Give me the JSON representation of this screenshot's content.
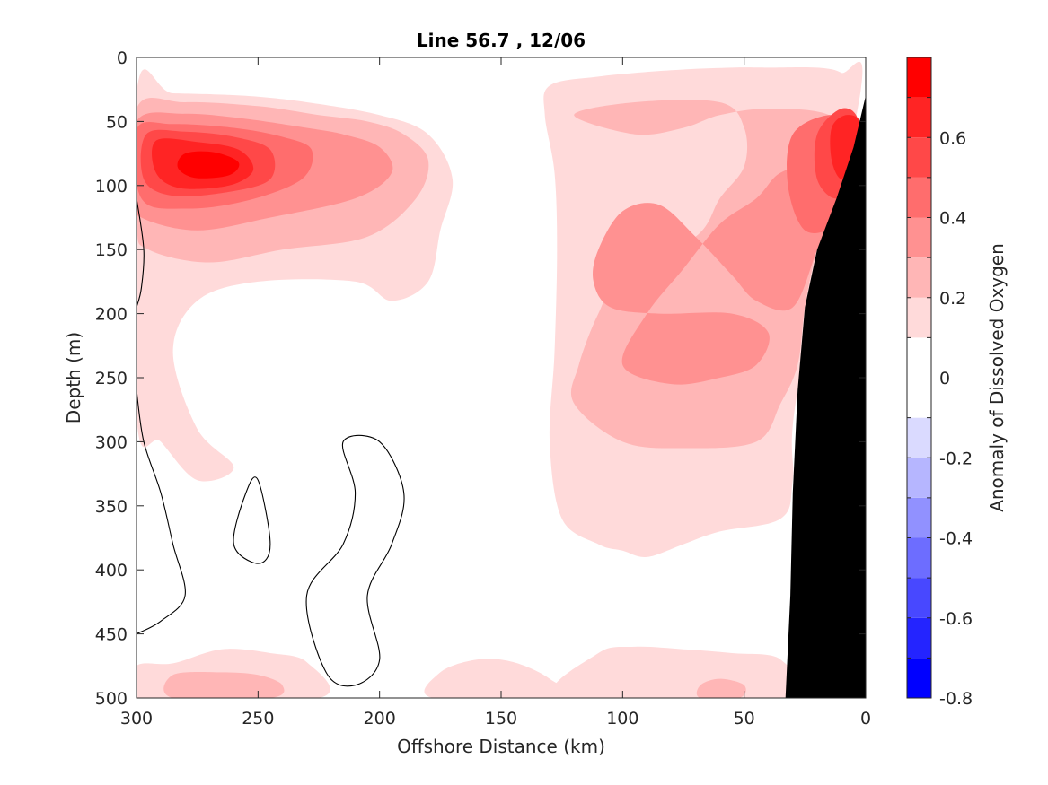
{
  "chart_data": {
    "type": "heatmap",
    "subtype": "filled-contour-section",
    "title": "Line 56.7 , 12/06",
    "xlabel": "Offshore Distance (km)",
    "ylabel": "Depth (m)",
    "colorbar_label": "Anomaly of Dissolved Oxygen",
    "xlim": [
      300,
      0
    ],
    "ylim": [
      0,
      500
    ],
    "x_reversed": true,
    "y_reversed": true,
    "grid": false,
    "x_ticks": [
      300,
      250,
      200,
      150,
      100,
      50,
      0
    ],
    "x_tick_labels": [
      "300",
      "250",
      "200",
      "150",
      "100",
      "50",
      "0"
    ],
    "y_ticks": [
      0,
      50,
      100,
      150,
      200,
      250,
      300,
      350,
      400,
      450,
      500
    ],
    "y_tick_labels": [
      "0",
      "50",
      "100",
      "150",
      "200",
      "250",
      "300",
      "350",
      "400",
      "450",
      "500"
    ],
    "colorbar": {
      "range": [
        -0.8,
        0.8
      ],
      "levels": [
        -0.8,
        -0.7,
        -0.6,
        -0.5,
        -0.4,
        -0.3,
        -0.2,
        -0.1,
        0.1,
        0.2,
        0.3,
        0.4,
        0.5,
        0.6,
        0.7,
        0.8
      ],
      "bands": [
        {
          "from": -0.8,
          "to": -0.7,
          "color": "#0000ff"
        },
        {
          "from": -0.7,
          "to": -0.6,
          "color": "#2424ff"
        },
        {
          "from": -0.6,
          "to": -0.5,
          "color": "#4848ff"
        },
        {
          "from": -0.5,
          "to": -0.4,
          "color": "#6d6dff"
        },
        {
          "from": -0.4,
          "to": -0.3,
          "color": "#9191ff"
        },
        {
          "from": -0.3,
          "to": -0.2,
          "color": "#b6b6ff"
        },
        {
          "from": -0.2,
          "to": -0.1,
          "color": "#dadaff"
        },
        {
          "from": -0.1,
          "to": 0.1,
          "color": "#ffffff"
        },
        {
          "from": 0.1,
          "to": 0.2,
          "color": "#ffdada"
        },
        {
          "from": 0.2,
          "to": 0.3,
          "color": "#ffb6b6"
        },
        {
          "from": 0.3,
          "to": 0.4,
          "color": "#ff9191"
        },
        {
          "from": 0.4,
          "to": 0.5,
          "color": "#ff6d6d"
        },
        {
          "from": 0.5,
          "to": 0.6,
          "color": "#ff4848"
        },
        {
          "from": 0.6,
          "to": 0.7,
          "color": "#ff2424"
        },
        {
          "from": 0.7,
          "to": 0.8,
          "color": "#ff0000"
        }
      ],
      "ticks": [
        0.6,
        0.4,
        0.2,
        0,
        -0.2,
        -0.4,
        -0.6,
        -0.8
      ],
      "tick_labels": [
        "0.6",
        "0.4",
        "0.2",
        "0",
        "-0.2",
        "-0.4",
        "-0.6",
        "-0.8"
      ]
    },
    "shelf_color": "#000000",
    "shelf_boundary": [
      [
        0,
        30
      ],
      [
        5,
        70
      ],
      [
        12,
        110
      ],
      [
        20,
        150
      ],
      [
        25,
        195
      ],
      [
        28,
        260
      ],
      [
        30,
        340
      ],
      [
        31,
        420
      ],
      [
        33,
        500
      ]
    ],
    "regions": [
      {
        "name": "surface-low-west",
        "level": -0.1,
        "polygon": [
          [
            300,
            0
          ],
          [
            280,
            0
          ],
          [
            270,
            15
          ],
          [
            265,
            25
          ],
          [
            285,
            30
          ],
          [
            300,
            28
          ]
        ]
      },
      {
        "name": "surface-low-mid",
        "level": -0.1,
        "polygon": [
          [
            240,
            0
          ],
          [
            180,
            0
          ],
          [
            175,
            10
          ],
          [
            200,
            20
          ],
          [
            235,
            25
          ]
        ]
      },
      {
        "name": "west-edge-low",
        "level": -0.1,
        "polygon": [
          [
            300,
            110
          ],
          [
            297,
            140
          ],
          [
            298,
            175
          ],
          [
            300,
            180
          ]
        ]
      },
      {
        "name": "core-west-0.1",
        "level": 0.1,
        "polygon": [
          [
            300,
            28
          ],
          [
            285,
            28
          ],
          [
            255,
            30
          ],
          [
            230,
            35
          ],
          [
            200,
            45
          ],
          [
            180,
            60
          ],
          [
            170,
            95
          ],
          [
            175,
            135
          ],
          [
            180,
            175
          ],
          [
            195,
            190
          ],
          [
            210,
            175
          ],
          [
            250,
            175
          ],
          [
            275,
            190
          ],
          [
            285,
            230
          ],
          [
            275,
            290
          ],
          [
            260,
            320
          ],
          [
            275,
            330
          ],
          [
            290,
            300
          ],
          [
            300,
            280
          ]
        ]
      },
      {
        "name": "core-west-0.2",
        "level": 0.2,
        "polygon": [
          [
            300,
            40
          ],
          [
            280,
            35
          ],
          [
            250,
            38
          ],
          [
            225,
            45
          ],
          [
            205,
            50
          ],
          [
            190,
            60
          ],
          [
            180,
            80
          ],
          [
            185,
            110
          ],
          [
            205,
            140
          ],
          [
            240,
            150
          ],
          [
            270,
            160
          ],
          [
            295,
            150
          ],
          [
            300,
            130
          ]
        ]
      },
      {
        "name": "core-west-0.3",
        "level": 0.3,
        "polygon": [
          [
            300,
            50
          ],
          [
            280,
            44
          ],
          [
            255,
            48
          ],
          [
            230,
            55
          ],
          [
            215,
            60
          ],
          [
            200,
            70
          ],
          [
            195,
            90
          ],
          [
            210,
            110
          ],
          [
            245,
            125
          ],
          [
            275,
            135
          ],
          [
            298,
            125
          ],
          [
            300,
            110
          ]
        ]
      },
      {
        "name": "core-west-0.4",
        "level": 0.4,
        "polygon": [
          [
            300,
            56
          ],
          [
            285,
            52
          ],
          [
            260,
            55
          ],
          [
            240,
            62
          ],
          [
            228,
            72
          ],
          [
            232,
            95
          ],
          [
            255,
            112
          ],
          [
            280,
            118
          ],
          [
            298,
            110
          ]
        ]
      },
      {
        "name": "core-west-0.5",
        "level": 0.5,
        "polygon": [
          [
            296,
            60
          ],
          [
            280,
            58
          ],
          [
            260,
            62
          ],
          [
            245,
            72
          ],
          [
            245,
            95
          ],
          [
            262,
            105
          ],
          [
            285,
            108
          ],
          [
            297,
            95
          ]
        ]
      },
      {
        "name": "core-west-0.6",
        "level": 0.6,
        "polygon": [
          [
            292,
            65
          ],
          [
            275,
            66
          ],
          [
            258,
            72
          ],
          [
            252,
            88
          ],
          [
            262,
            100
          ],
          [
            282,
            102
          ],
          [
            292,
            90
          ]
        ]
      },
      {
        "name": "core-west-0.7",
        "level": 0.7,
        "polygon": [
          [
            280,
            75
          ],
          [
            268,
            74
          ],
          [
            258,
            82
          ],
          [
            262,
            92
          ],
          [
            276,
            94
          ],
          [
            283,
            86
          ]
        ]
      },
      {
        "name": "east-0.1",
        "level": 0.1,
        "polygon": [
          [
            130,
            22
          ],
          [
            110,
            15
          ],
          [
            80,
            10
          ],
          [
            55,
            8
          ],
          [
            40,
            8
          ],
          [
            20,
            8
          ],
          [
            10,
            12
          ],
          [
            2,
            25
          ],
          [
            28,
            260
          ],
          [
            30,
            330
          ],
          [
            35,
            360
          ],
          [
            60,
            370
          ],
          [
            75,
            380
          ],
          [
            90,
            390
          ],
          [
            100,
            385
          ],
          [
            110,
            380
          ],
          [
            125,
            360
          ],
          [
            130,
            300
          ],
          [
            128,
            230
          ],
          [
            127,
            150
          ],
          [
            128,
            90
          ],
          [
            132,
            45
          ]
        ]
      },
      {
        "name": "east-0.2",
        "level": 0.2,
        "polygon": [
          [
            120,
            45
          ],
          [
            95,
            35
          ],
          [
            60,
            35
          ],
          [
            50,
            55
          ],
          [
            50,
            85
          ],
          [
            60,
            110
          ],
          [
            70,
            140
          ],
          [
            100,
            170
          ],
          [
            110,
            200
          ],
          [
            118,
            240
          ],
          [
            120,
            270
          ],
          [
            100,
            300
          ],
          [
            75,
            305
          ],
          [
            45,
            300
          ],
          [
            35,
            270
          ],
          [
            28,
            240
          ],
          [
            25,
            195
          ],
          [
            20,
            150
          ],
          [
            12,
            110
          ],
          [
            5,
            70
          ],
          [
            15,
            45
          ],
          [
            40,
            40
          ],
          [
            60,
            45
          ],
          [
            75,
            55
          ],
          [
            95,
            60
          ]
        ]
      },
      {
        "name": "east-0.3",
        "level": 0.3,
        "polygon": [
          [
            110,
            150
          ],
          [
            100,
            120
          ],
          [
            85,
            115
          ],
          [
            70,
            140
          ],
          [
            55,
            170
          ],
          [
            45,
            190
          ],
          [
            30,
            195
          ],
          [
            20,
            150
          ],
          [
            12,
            110
          ],
          [
            20,
            85
          ],
          [
            35,
            90
          ],
          [
            45,
            110
          ],
          [
            60,
            130
          ],
          [
            75,
            165
          ],
          [
            90,
            200
          ],
          [
            100,
            240
          ],
          [
            80,
            255
          ],
          [
            60,
            250
          ],
          [
            45,
            240
          ],
          [
            40,
            215
          ],
          [
            55,
            200
          ],
          [
            85,
            200
          ],
          [
            105,
            195
          ],
          [
            112,
            175
          ]
        ]
      },
      {
        "name": "east-0.4",
        "level": 0.4,
        "polygon": [
          [
            15,
            45
          ],
          [
            5,
            55
          ],
          [
            5,
            100
          ],
          [
            12,
            130
          ],
          [
            25,
            135
          ],
          [
            32,
            100
          ],
          [
            30,
            60
          ]
        ]
      },
      {
        "name": "east-0.5",
        "level": 0.5,
        "polygon": [
          [
            10,
            40
          ],
          [
            3,
            50
          ],
          [
            5,
            90
          ],
          [
            12,
            110
          ],
          [
            20,
            95
          ],
          [
            20,
            60
          ]
        ]
      },
      {
        "name": "east-0.6",
        "level": 0.6,
        "polygon": [
          [
            8,
            45
          ],
          [
            2,
            52
          ],
          [
            4,
            85
          ],
          [
            10,
            95
          ],
          [
            14,
            80
          ],
          [
            14,
            55
          ]
        ]
      },
      {
        "name": "bottom-west-0.1",
        "level": 0.1,
        "polygon": [
          [
            300,
            475
          ],
          [
            285,
            473
          ],
          [
            265,
            462
          ],
          [
            245,
            465
          ],
          [
            230,
            472
          ],
          [
            225,
            500
          ],
          [
            300,
            500
          ]
        ]
      },
      {
        "name": "bottom-west-0.2",
        "level": 0.2,
        "polygon": [
          [
            285,
            482
          ],
          [
            265,
            480
          ],
          [
            250,
            482
          ],
          [
            240,
            490
          ],
          [
            245,
            500
          ],
          [
            285,
            500
          ]
        ]
      },
      {
        "name": "bottom-mid-0.1",
        "level": 0.1,
        "polygon": [
          [
            175,
            480
          ],
          [
            160,
            470
          ],
          [
            145,
            472
          ],
          [
            130,
            485
          ],
          [
            125,
            500
          ],
          [
            178,
            500
          ]
        ]
      },
      {
        "name": "bottom-east-0.1",
        "level": 0.1,
        "polygon": [
          [
            125,
            500
          ],
          [
            110,
            465
          ],
          [
            95,
            460
          ],
          [
            75,
            462
          ],
          [
            55,
            465
          ],
          [
            35,
            470
          ],
          [
            33,
            500
          ]
        ]
      },
      {
        "name": "bottom-east-0.2",
        "level": 0.2,
        "polygon": [
          [
            68,
            490
          ],
          [
            60,
            485
          ],
          [
            50,
            490
          ],
          [
            52,
            500
          ],
          [
            68,
            500
          ]
        ]
      }
    ],
    "zero_contours": [
      [
        [
          300,
          110
        ],
        [
          297,
          150
        ],
        [
          298,
          180
        ],
        [
          300,
          195
        ]
      ],
      [
        [
          300,
          260
        ],
        [
          297,
          300
        ],
        [
          290,
          340
        ],
        [
          285,
          380
        ],
        [
          280,
          420
        ],
        [
          290,
          440
        ],
        [
          300,
          450
        ]
      ],
      [
        [
          250,
          330
        ],
        [
          245,
          380
        ],
        [
          250,
          395
        ],
        [
          260,
          380
        ],
        [
          255,
          340
        ]
      ],
      [
        [
          215,
          300
        ],
        [
          200,
          300
        ],
        [
          190,
          340
        ],
        [
          195,
          380
        ],
        [
          205,
          420
        ],
        [
          200,
          470
        ],
        [
          210,
          490
        ],
        [
          222,
          480
        ],
        [
          230,
          420
        ],
        [
          215,
          380
        ],
        [
          210,
          340
        ]
      ]
    ]
  }
}
